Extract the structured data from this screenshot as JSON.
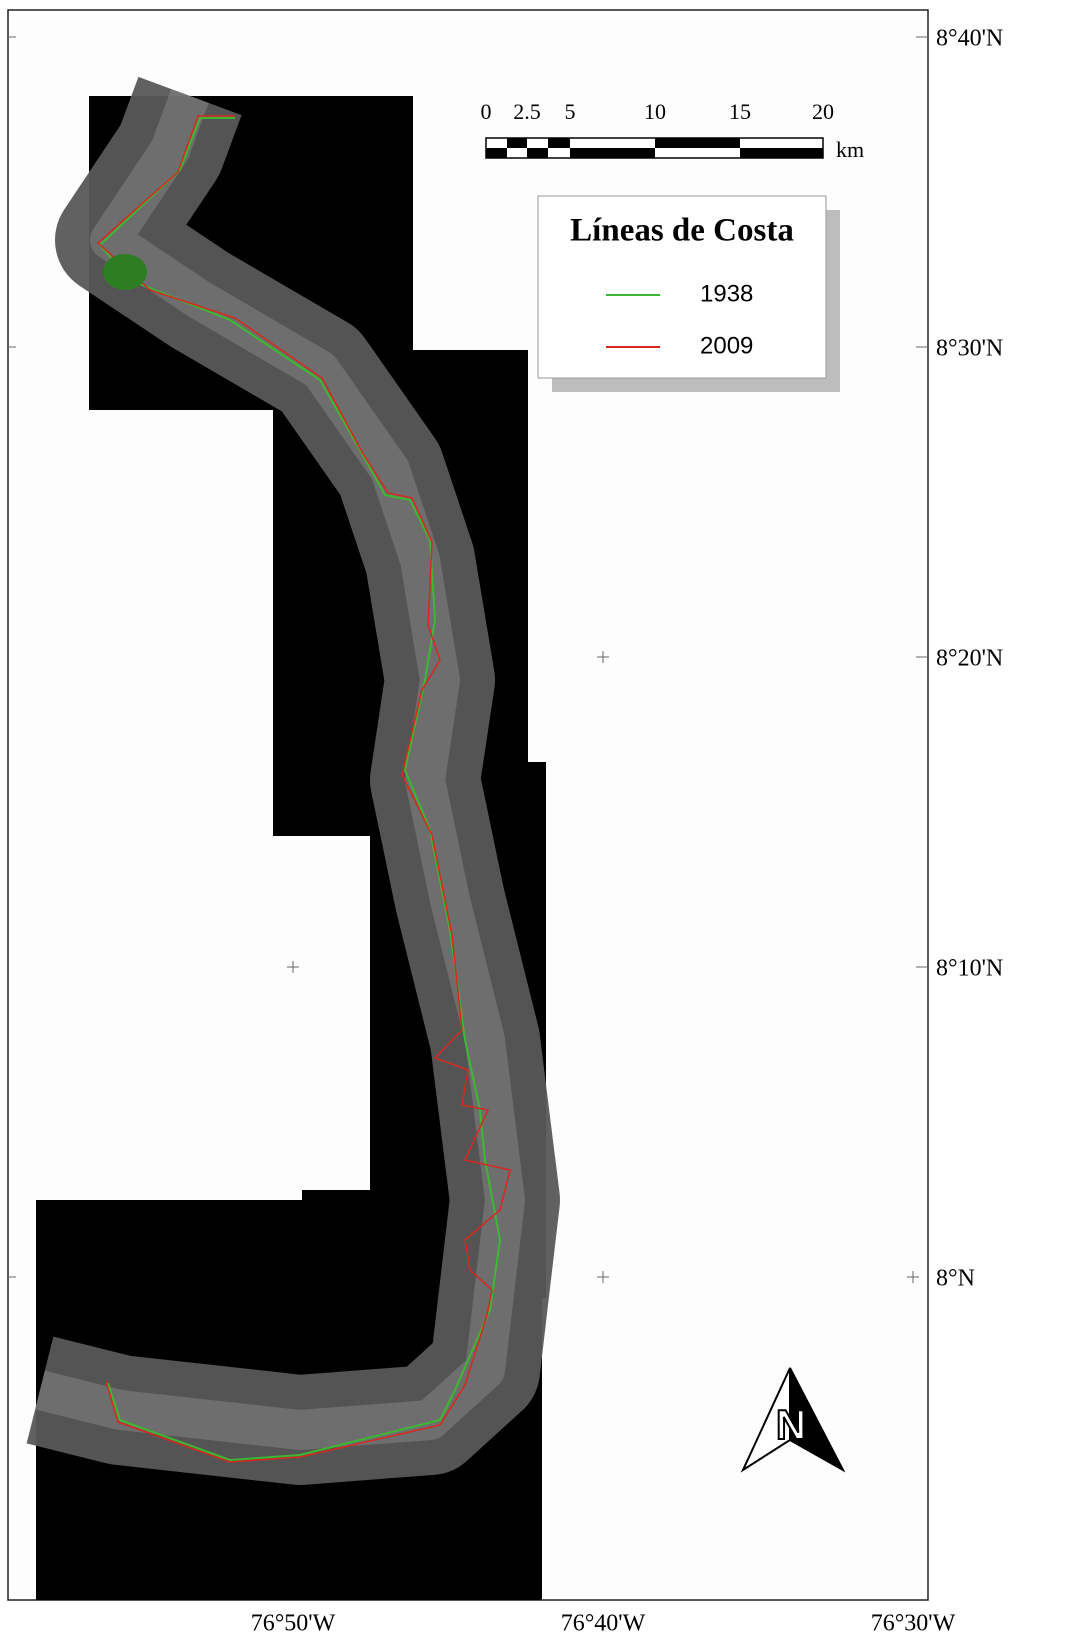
{
  "map": {
    "legend": {
      "title": "Líneas de Costa",
      "entries": [
        {
          "label": "1938",
          "color": "#3cb832"
        },
        {
          "label": "2009",
          "color": "#d8281e"
        }
      ]
    },
    "scale_bar": {
      "labels": [
        "0",
        "2.5",
        "5",
        "10",
        "15",
        "20"
      ],
      "unit": "km"
    },
    "latitude_labels": [
      "8°40'N",
      "8°30'N",
      "8°20'N",
      "8°10'N",
      "8°N"
    ],
    "longitude_labels": [
      "76°50'W",
      "76°40'W",
      "76°30'W"
    ],
    "north_arrow": "N"
  }
}
